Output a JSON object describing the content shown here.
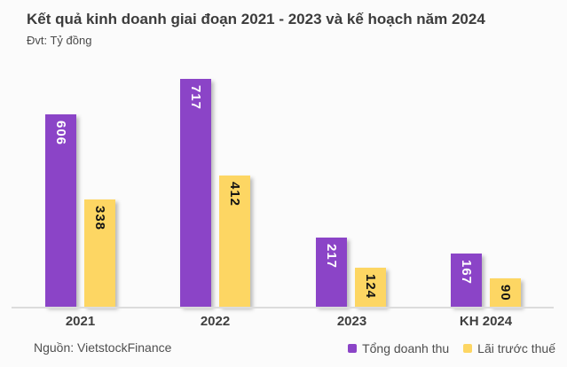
{
  "header": {
    "title": "Kết quả kinh doanh giai đoạn 2021 - 2023 và kế hoạch năm 2024",
    "unit_label": "Đvt: Tỷ đồng"
  },
  "chart_data": {
    "type": "bar",
    "title": "Kết quả kinh doanh giai đoạn 2021 - 2023 và kế hoạch năm 2024",
    "subtitle": "Đvt: Tỷ đồng",
    "categories": [
      "2021",
      "2022",
      "2023",
      "KH 2024"
    ],
    "series": [
      {
        "name": "Tổng doanh thu",
        "color": "#8b44c7",
        "label_color": "#ffffff",
        "values": [
          606,
          717,
          217,
          167
        ]
      },
      {
        "name": "Lãi trước thuế",
        "color": "#fdd663",
        "label_color": "#141414",
        "values": [
          338,
          412,
          124,
          90
        ]
      }
    ],
    "ylim": [
      0,
      750
    ],
    "grid": false,
    "y_axis_visible": false,
    "legend_position": "bottom-right",
    "value_labels": "rotated-90deg-inside-bar-top"
  },
  "footer": {
    "source": "Nguồn: VietstockFinance"
  },
  "colors": {
    "background": "#fbfbfb",
    "axis_line": "#dcdcdc",
    "title_text": "#3c3c3c",
    "label_text": "#4f4f4f"
  }
}
